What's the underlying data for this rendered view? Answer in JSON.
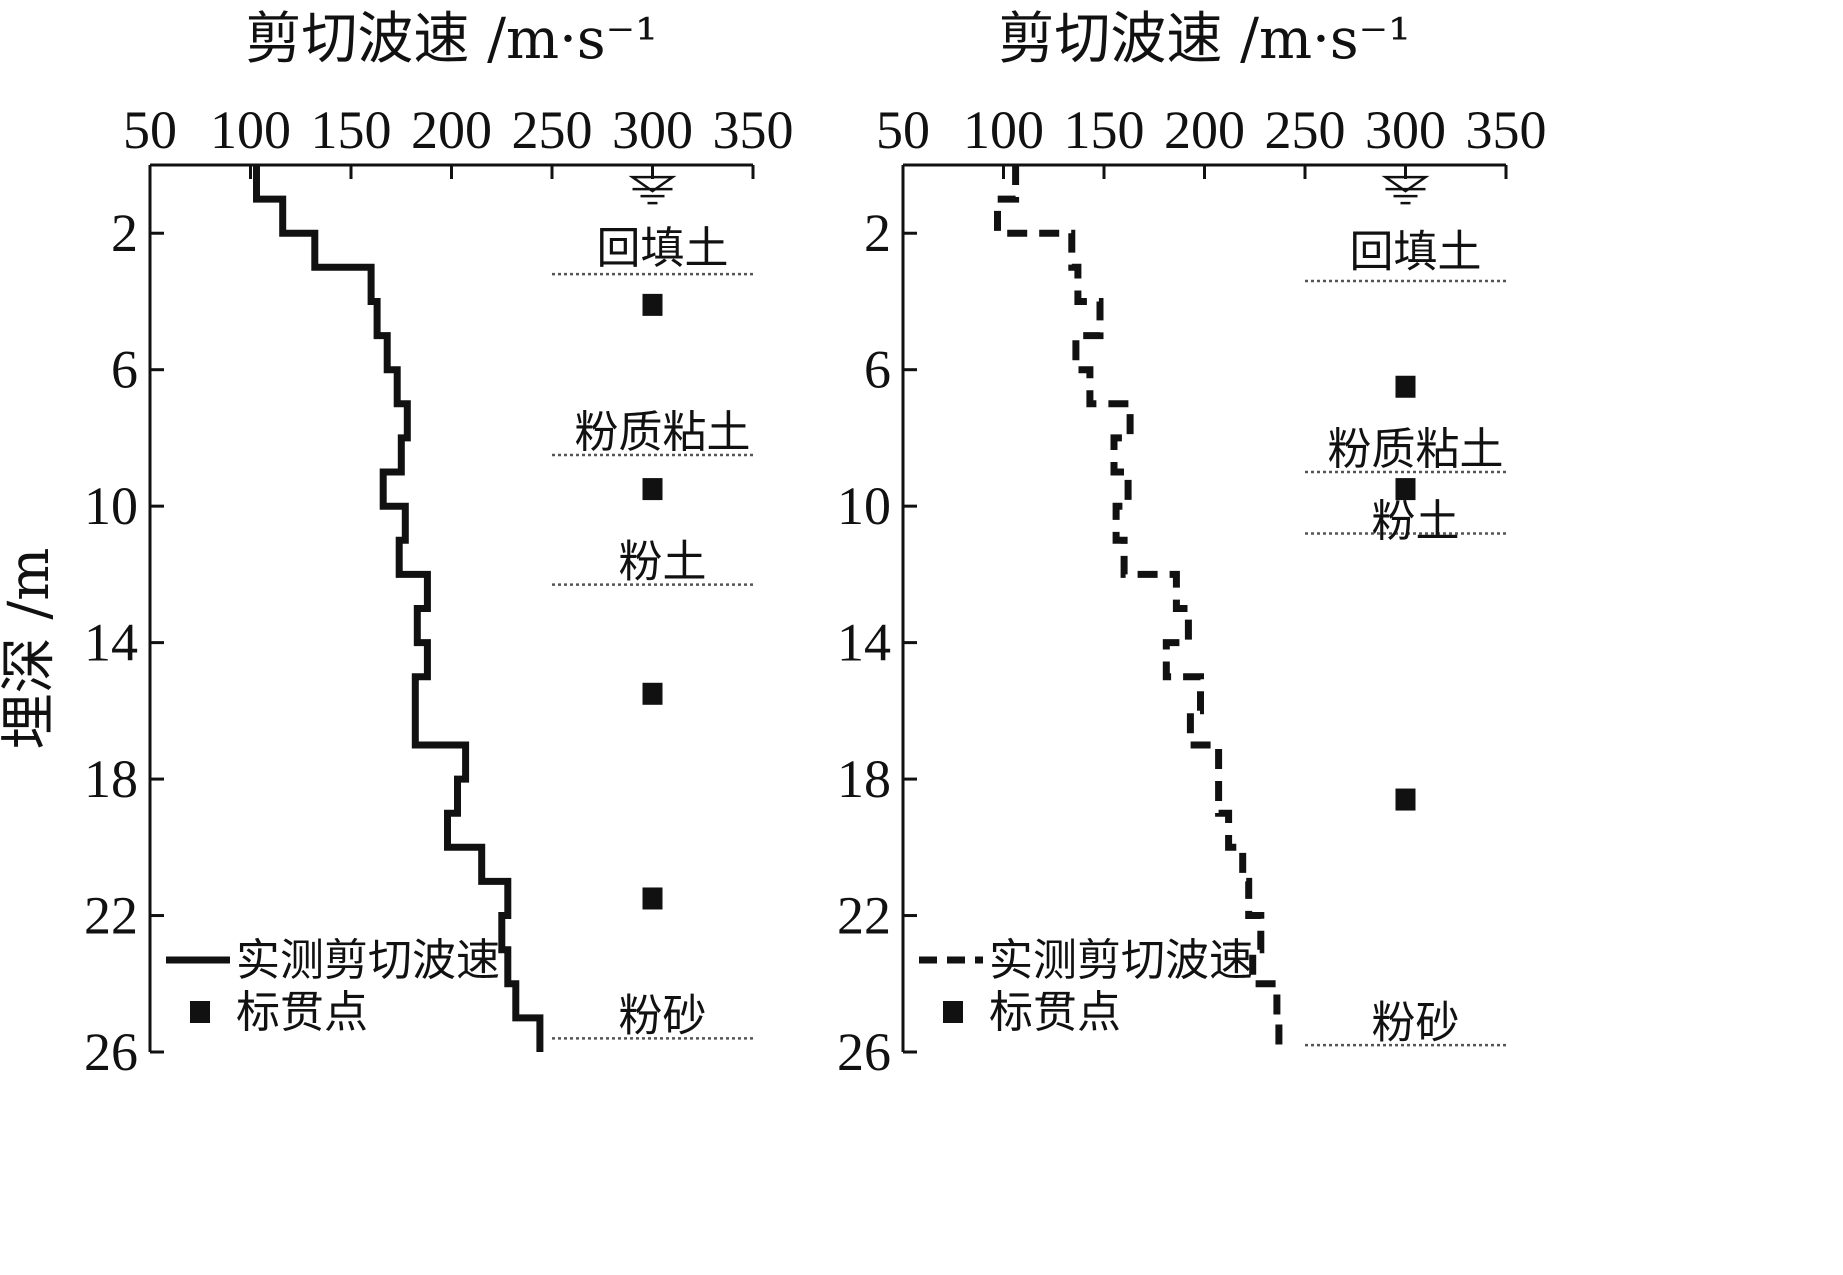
{
  "chart_data": [
    {
      "type": "line",
      "title": "",
      "xlabel": "剪切波速 /m·s⁻¹",
      "ylabel": "埋深 /m",
      "xlim": [
        50,
        350
      ],
      "ylim": [
        0,
        26
      ],
      "y_inverted": true,
      "x_ticks": [
        "50",
        "100",
        "150",
        "200",
        "250",
        "300",
        "350"
      ],
      "y_ticks": [
        "2",
        "6",
        "10",
        "14",
        "18",
        "22",
        "26"
      ],
      "x_axis_position": "top",
      "grid": false,
      "legend": {
        "placement": "bottom-left",
        "entries": [
          "实测剪切波速",
          "标贯点"
        ]
      },
      "series": [
        {
          "name": "实测剪切波速",
          "style": "solid",
          "points": [
            {
              "v": 103,
              "y": 0
            },
            {
              "v": 103,
              "y": 1
            },
            {
              "v": 116,
              "y": 1
            },
            {
              "v": 116,
              "y": 2
            },
            {
              "v": 132,
              "y": 2
            },
            {
              "v": 132,
              "y": 3
            },
            {
              "v": 160,
              "y": 3
            },
            {
              "v": 160,
              "y": 4
            },
            {
              "v": 163,
              "y": 4
            },
            {
              "v": 163,
              "y": 5
            },
            {
              "v": 168,
              "y": 5
            },
            {
              "v": 168,
              "y": 6
            },
            {
              "v": 173,
              "y": 6
            },
            {
              "v": 173,
              "y": 7
            },
            {
              "v": 178,
              "y": 7
            },
            {
              "v": 178,
              "y": 8
            },
            {
              "v": 175,
              "y": 8
            },
            {
              "v": 175,
              "y": 9
            },
            {
              "v": 166,
              "y": 9
            },
            {
              "v": 166,
              "y": 10
            },
            {
              "v": 177,
              "y": 10
            },
            {
              "v": 177,
              "y": 11
            },
            {
              "v": 174,
              "y": 11
            },
            {
              "v": 174,
              "y": 12
            },
            {
              "v": 188,
              "y": 12
            },
            {
              "v": 188,
              "y": 13
            },
            {
              "v": 183,
              "y": 13
            },
            {
              "v": 183,
              "y": 14
            },
            {
              "v": 188,
              "y": 14
            },
            {
              "v": 188,
              "y": 15
            },
            {
              "v": 182,
              "y": 15
            },
            {
              "v": 182,
              "y": 17
            },
            {
              "v": 207,
              "y": 17
            },
            {
              "v": 207,
              "y": 18
            },
            {
              "v": 203,
              "y": 18
            },
            {
              "v": 203,
              "y": 19
            },
            {
              "v": 198,
              "y": 19
            },
            {
              "v": 198,
              "y": 20
            },
            {
              "v": 215,
              "y": 20
            },
            {
              "v": 215,
              "y": 21
            },
            {
              "v": 228,
              "y": 21
            },
            {
              "v": 228,
              "y": 22
            },
            {
              "v": 225,
              "y": 22
            },
            {
              "v": 225,
              "y": 23
            },
            {
              "v": 228,
              "y": 23
            },
            {
              "v": 228,
              "y": 24
            },
            {
              "v": 232,
              "y": 24
            },
            {
              "v": 232,
              "y": 25
            },
            {
              "v": 244,
              "y": 25
            },
            {
              "v": 244,
              "y": 26
            }
          ]
        },
        {
          "name": "标贯点",
          "style": "marker",
          "points": [
            {
              "v": 300,
              "y": 4.1
            },
            {
              "v": 300,
              "y": 9.5
            },
            {
              "v": 300,
              "y": 15.5
            },
            {
              "v": 300,
              "y": 21.5
            }
          ]
        }
      ],
      "water_level": {
        "v": 300,
        "y": 1
      },
      "layers": [
        {
          "label": "回填土",
          "label_y": 2.4,
          "boundary_y": 3.2,
          "x_from": 250
        },
        {
          "label": "粉质粘土",
          "label_y": 7.8,
          "boundary_y": 8.5,
          "x_from": 250
        },
        {
          "label": "粉土",
          "label_y": 11.6,
          "boundary_y": 12.3,
          "x_from": 250
        },
        {
          "label": "粉砂",
          "label_y": 24.9,
          "boundary_y": 25.6,
          "x_from": 250
        }
      ]
    },
    {
      "type": "line",
      "title": "",
      "xlabel": "剪切波速 /m·s⁻¹",
      "ylabel": "",
      "xlim": [
        50,
        350
      ],
      "ylim": [
        0,
        26
      ],
      "y_inverted": true,
      "x_ticks": [
        "50",
        "100",
        "150",
        "200",
        "250",
        "300",
        "350"
      ],
      "y_ticks": [
        "2",
        "6",
        "10",
        "14",
        "18",
        "22",
        "26"
      ],
      "x_axis_position": "top",
      "grid": false,
      "legend": {
        "placement": "bottom-left",
        "entries": [
          "实测剪切波速",
          "标贯点"
        ]
      },
      "series": [
        {
          "name": "实测剪切波速",
          "style": "dashed",
          "points": [
            {
              "v": 106,
              "y": 0
            },
            {
              "v": 106,
              "y": 1
            },
            {
              "v": 97,
              "y": 1
            },
            {
              "v": 97,
              "y": 2
            },
            {
              "v": 134,
              "y": 2
            },
            {
              "v": 134,
              "y": 3
            },
            {
              "v": 137,
              "y": 3
            },
            {
              "v": 137,
              "y": 4
            },
            {
              "v": 148,
              "y": 4
            },
            {
              "v": 148,
              "y": 5
            },
            {
              "v": 136,
              "y": 5
            },
            {
              "v": 136,
              "y": 6
            },
            {
              "v": 143,
              "y": 6
            },
            {
              "v": 143,
              "y": 7
            },
            {
              "v": 163,
              "y": 7
            },
            {
              "v": 163,
              "y": 8
            },
            {
              "v": 155,
              "y": 8
            },
            {
              "v": 155,
              "y": 9
            },
            {
              "v": 162,
              "y": 9
            },
            {
              "v": 162,
              "y": 10
            },
            {
              "v": 156,
              "y": 10
            },
            {
              "v": 156,
              "y": 11
            },
            {
              "v": 160,
              "y": 11
            },
            {
              "v": 160,
              "y": 12
            },
            {
              "v": 186,
              "y": 12
            },
            {
              "v": 186,
              "y": 13
            },
            {
              "v": 192,
              "y": 13
            },
            {
              "v": 192,
              "y": 14
            },
            {
              "v": 181,
              "y": 14
            },
            {
              "v": 181,
              "y": 15
            },
            {
              "v": 198,
              "y": 15
            },
            {
              "v": 198,
              "y": 16
            },
            {
              "v": 193,
              "y": 16
            },
            {
              "v": 193,
              "y": 17
            },
            {
              "v": 207,
              "y": 17
            },
            {
              "v": 207,
              "y": 19
            },
            {
              "v": 212,
              "y": 19
            },
            {
              "v": 212,
              "y": 20
            },
            {
              "v": 219,
              "y": 20
            },
            {
              "v": 219,
              "y": 21
            },
            {
              "v": 222,
              "y": 21
            },
            {
              "v": 222,
              "y": 22
            },
            {
              "v": 228,
              "y": 22
            },
            {
              "v": 228,
              "y": 23
            },
            {
              "v": 224,
              "y": 23
            },
            {
              "v": 224,
              "y": 24
            },
            {
              "v": 236,
              "y": 24
            },
            {
              "v": 236,
              "y": 25
            },
            {
              "v": 237,
              "y": 25
            },
            {
              "v": 237,
              "y": 26
            }
          ]
        },
        {
          "name": "标贯点",
          "style": "marker",
          "points": [
            {
              "v": 300,
              "y": 6.5
            },
            {
              "v": 300,
              "y": 9.5
            },
            {
              "v": 300,
              "y": 18.6
            }
          ]
        }
      ],
      "water_level": {
        "v": 300,
        "y": 1
      },
      "layers": [
        {
          "label": "回填土",
          "label_y": 2.5,
          "boundary_y": 3.4,
          "x_from": 250
        },
        {
          "label": "粉质粘土",
          "label_y": 8.3,
          "boundary_y": 9.0,
          "x_from": 250
        },
        {
          "label": "粉土",
          "label_y": 10.4,
          "boundary_y": 10.8,
          "x_from": 250
        },
        {
          "label": "粉砂",
          "label_y": 25.1,
          "boundary_y": 25.8,
          "x_from": 250
        }
      ]
    }
  ]
}
